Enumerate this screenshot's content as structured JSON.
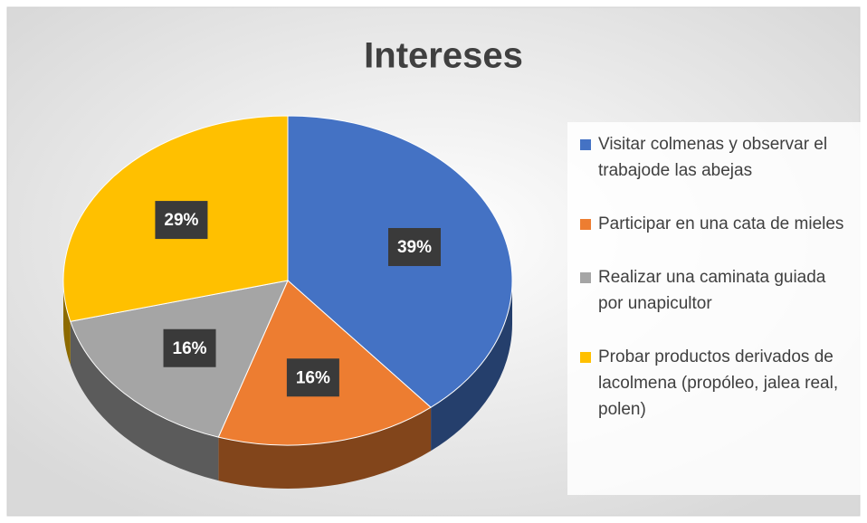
{
  "chart_data": {
    "type": "pie",
    "title": "Intereses",
    "categories": [
      "Visitar colmenas y observar el trabajode las abejas",
      "Participar en una cata de mieles",
      "Realizar una caminata guiada por unapicultor",
      "Probar productos derivados de lacolmena (propóleo, jalea real, polen)"
    ],
    "values": [
      39,
      16,
      16,
      29
    ],
    "value_labels": [
      "39%",
      "16%",
      "16%",
      "29%"
    ],
    "colors": [
      "#4472c4",
      "#ed7d31",
      "#a5a5a5",
      "#ffc000"
    ],
    "legend": "right"
  }
}
